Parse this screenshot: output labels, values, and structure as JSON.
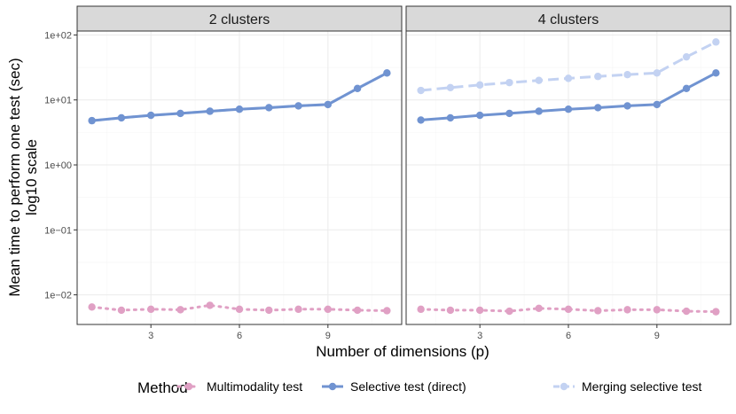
{
  "chart_data": {
    "type": "line",
    "y_scale": "log10",
    "xlabel": "Number of dimensions (p)",
    "ylabel_lines": [
      "Mean time to perform one test (sec)",
      "log10 scale"
    ],
    "x_ticks": [
      3,
      6,
      9
    ],
    "xlim": [
      0.5,
      11.5
    ],
    "y_ticks": [
      0.01,
      0.1,
      1,
      10,
      100
    ],
    "y_tick_labels": [
      "1e−02",
      "1e−01",
      "1e+00",
      "1e+01",
      "1e+02"
    ],
    "ylim": [
      0.0035,
      115
    ],
    "legend": {
      "title": "Method",
      "placement": "bottom",
      "entries": [
        "Multimodality test",
        "Selective test (direct)",
        "Merging selective test"
      ]
    },
    "colors": {
      "multimodality": "#e0a0c4",
      "selective": "#7093d1",
      "merging": "#c3d2f2"
    },
    "facets": [
      {
        "label": "2 clusters",
        "series": [
          {
            "name": "Multimodality test",
            "key": "multimodality",
            "dash": "dotted",
            "x": [
              1,
              2,
              3,
              4,
              5,
              6,
              7,
              8,
              9,
              10,
              11
            ],
            "y": [
              0.0065,
              0.0058,
              0.006,
              0.0059,
              0.0069,
              0.006,
              0.0058,
              0.006,
              0.006,
              0.0058,
              0.0057
            ]
          },
          {
            "name": "Selective test (direct)",
            "key": "selective",
            "dash": "solid",
            "x": [
              1,
              2,
              3,
              4,
              5,
              6,
              7,
              8,
              9,
              10,
              11
            ],
            "y": [
              4.8,
              5.3,
              5.8,
              6.2,
              6.7,
              7.2,
              7.6,
              8.1,
              8.5,
              15,
              26
            ]
          },
          {
            "name": "Merging selective test",
            "key": "merging",
            "dash": "dashed",
            "x": [
              1,
              2,
              3,
              4,
              5,
              6,
              7,
              8,
              9,
              10,
              11
            ],
            "y": [
              4.8,
              5.3,
              5.8,
              6.2,
              6.7,
              7.2,
              7.6,
              8.1,
              8.5,
              15,
              26
            ]
          }
        ]
      },
      {
        "label": "4 clusters",
        "series": [
          {
            "name": "Multimodality test",
            "key": "multimodality",
            "dash": "dotted",
            "x": [
              1,
              2,
              3,
              4,
              5,
              6,
              7,
              8,
              9,
              10,
              11
            ],
            "y": [
              0.006,
              0.0058,
              0.0058,
              0.0056,
              0.0062,
              0.006,
              0.0057,
              0.0059,
              0.0059,
              0.0056,
              0.0055
            ]
          },
          {
            "name": "Selective test (direct)",
            "key": "selective",
            "dash": "solid",
            "x": [
              1,
              2,
              3,
              4,
              5,
              6,
              7,
              8,
              9,
              10,
              11
            ],
            "y": [
              4.9,
              5.3,
              5.8,
              6.2,
              6.7,
              7.2,
              7.6,
              8.1,
              8.5,
              15,
              26
            ]
          },
          {
            "name": "Merging selective test",
            "key": "merging",
            "dash": "dashed",
            "x": [
              1,
              2,
              3,
              4,
              5,
              6,
              7,
              8,
              9,
              10,
              11
            ],
            "y": [
              14,
              15.5,
              17,
              18.5,
              20,
              21.5,
              23,
              24.5,
              26,
              46,
              78
            ]
          }
        ]
      }
    ]
  }
}
